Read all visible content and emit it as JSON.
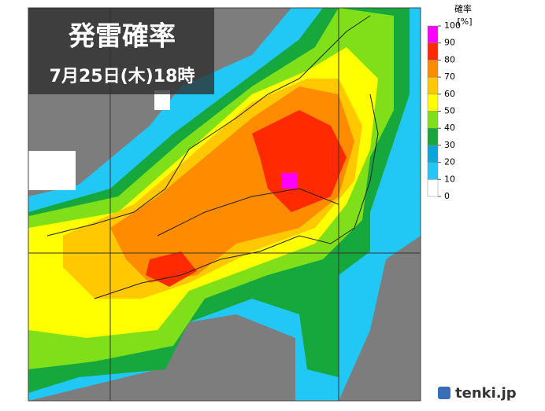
{
  "title": "発雷確率",
  "date": "7月25日(木)18時",
  "legend": {
    "title": "確率",
    "unit": "[%]",
    "ticks": [
      0,
      10,
      20,
      30,
      40,
      50,
      60,
      70,
      80,
      90,
      100
    ],
    "colors": [
      "#ffffff",
      "#22c8f5",
      "#0aa6d8",
      "#16a83c",
      "#7fe01a",
      "#ffff00",
      "#ffc800",
      "#ff8c00",
      "#ff2a00",
      "#ff00ff"
    ]
  },
  "logo": "tenki.jp"
}
